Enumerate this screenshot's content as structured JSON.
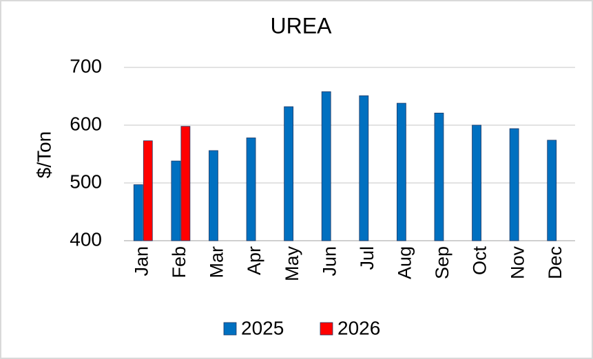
{
  "chart_data": {
    "type": "bar",
    "title": "UREA",
    "y_label": "$/Ton",
    "categories": [
      "Jan",
      "Feb",
      "Mar",
      "Apr",
      "May",
      "Jun",
      "Jul",
      "Aug",
      "Sep",
      "Oct",
      "Nov",
      "Dec"
    ],
    "series": [
      {
        "name": "2025",
        "color": "#0070c0",
        "values": [
          497,
          538,
          556,
          578,
          632,
          658,
          651,
          638,
          621,
          600,
          594,
          574
        ]
      },
      {
        "name": "2026",
        "color": "#ff0000",
        "values": [
          573,
          598,
          null,
          null,
          null,
          null,
          null,
          null,
          null,
          null,
          null,
          null
        ]
      }
    ],
    "ylim": [
      400,
      700
    ],
    "yticks": [
      400,
      500,
      600,
      700
    ],
    "grid": true,
    "legend": "bottom"
  }
}
